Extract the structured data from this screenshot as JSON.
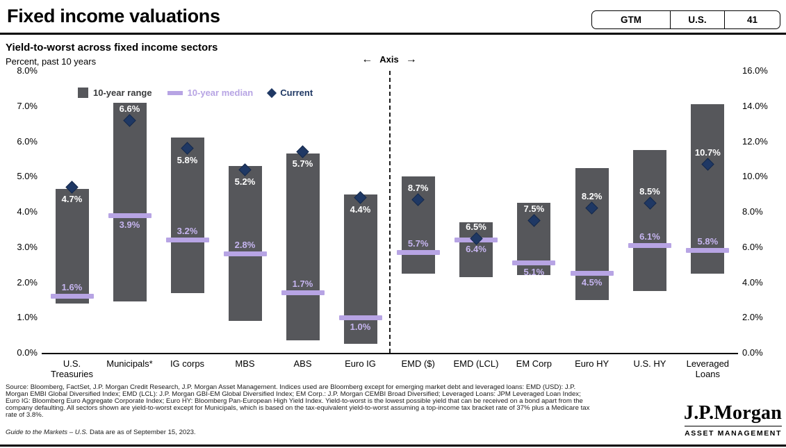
{
  "header": {
    "title": "Fixed income valuations",
    "badge": [
      "GTM",
      "U.S.",
      "41"
    ]
  },
  "chart_data": {
    "type": "bar",
    "subtype": "floating-range-with-median-and-current-markers",
    "title": "Yield-to-worst across fixed income sectors",
    "subtitle": "Percent, past 10 years",
    "axis_divider_label": "Axis",
    "legend": [
      {
        "marker": "square",
        "label": "10-year range"
      },
      {
        "marker": "line",
        "label": "10-year median"
      },
      {
        "marker": "diamond",
        "label": "Current"
      }
    ],
    "left_axis": {
      "min": 0,
      "max": 8,
      "ticks": [
        "8.0%",
        "7.0%",
        "6.0%",
        "5.0%",
        "4.0%",
        "3.0%",
        "2.0%",
        "1.0%",
        "0.0%"
      ]
    },
    "right_axis": {
      "min": 0,
      "max": 16,
      "ticks": [
        "16.0%",
        "14.0%",
        "12.0%",
        "10.0%",
        "8.0%",
        "6.0%",
        "4.0%",
        "2.0%",
        "0.0%"
      ]
    },
    "bars": [
      {
        "category": "U.S.\nTreasuries",
        "axis": "left",
        "range_low": 1.4,
        "range_high": 4.65,
        "median": 1.6,
        "current": 4.7,
        "median_label": "1.6%",
        "current_label": "4.7%",
        "median_label_side": "above",
        "current_label_side": "below"
      },
      {
        "category": "Municipals*",
        "axis": "left",
        "range_low": 1.45,
        "range_high": 7.1,
        "median": 3.9,
        "current": 6.6,
        "median_label": "3.9%",
        "current_label": "6.6%",
        "median_label_side": "below",
        "current_label_side": "above"
      },
      {
        "category": "IG corps",
        "axis": "left",
        "range_low": 1.7,
        "range_high": 6.1,
        "median": 3.2,
        "current": 5.8,
        "median_label": "3.2%",
        "current_label": "5.8%",
        "median_label_side": "above",
        "current_label_side": "below"
      },
      {
        "category": "MBS",
        "axis": "left",
        "range_low": 0.9,
        "range_high": 5.3,
        "median": 2.8,
        "current": 5.2,
        "median_label": "2.8%",
        "current_label": "5.2%",
        "median_label_side": "above",
        "current_label_side": "below"
      },
      {
        "category": "ABS",
        "axis": "left",
        "range_low": 0.35,
        "range_high": 5.65,
        "median": 1.7,
        "current": 5.7,
        "median_label": "1.7%",
        "current_label": "5.7%",
        "median_label_side": "above",
        "current_label_side": "below"
      },
      {
        "category": "Euro IG",
        "axis": "left",
        "range_low": 0.25,
        "range_high": 4.5,
        "median": 1.0,
        "current": 4.4,
        "median_label": "1.0%",
        "current_label": "4.4%",
        "median_label_side": "below",
        "current_label_side": "below"
      },
      {
        "category": "EMD ($)",
        "axis": "right",
        "range_low": 4.5,
        "range_high": 10.0,
        "median": 5.7,
        "current": 8.7,
        "median_label": "5.7%",
        "current_label": "8.7%",
        "median_label_side": "above",
        "current_label_side": "above"
      },
      {
        "category": "EMD (LCL)",
        "axis": "right",
        "range_low": 4.3,
        "range_high": 7.4,
        "median": 6.4,
        "current": 6.5,
        "median_label": "6.4%",
        "current_label": "6.5%",
        "median_label_side": "below",
        "current_label_side": "above"
      },
      {
        "category": "EM Corp",
        "axis": "right",
        "range_low": 4.4,
        "range_high": 8.5,
        "median": 5.1,
        "current": 7.5,
        "median_label": "5.1%",
        "current_label": "7.5%",
        "median_label_side": "below",
        "current_label_side": "above"
      },
      {
        "category": "Euro HY",
        "axis": "right",
        "range_low": 3.0,
        "range_high": 10.5,
        "median": 4.5,
        "current": 8.2,
        "median_label": "4.5%",
        "current_label": "8.2%",
        "median_label_side": "below",
        "current_label_side": "above"
      },
      {
        "category": "U.S. HY",
        "axis": "right",
        "range_low": 3.5,
        "range_high": 11.5,
        "median": 6.1,
        "current": 8.5,
        "median_label": "6.1%",
        "current_label": "8.5%",
        "median_label_side": "above",
        "current_label_side": "above"
      },
      {
        "category": "Leveraged\nLoans",
        "axis": "right",
        "range_low": 4.5,
        "range_high": 14.1,
        "median": 5.8,
        "current": 10.7,
        "median_label": "5.8%",
        "current_label": "10.7%",
        "median_label_side": "above",
        "current_label_side": "above"
      }
    ]
  },
  "colors": {
    "range_bar": "#56575B",
    "median": "#B7A4E4",
    "median_text": "#C6B5F0",
    "median_legend_text": "#B7A4E4",
    "current": "#1F3864",
    "current_border": "#15294C",
    "current_text": "#FFFFFF",
    "legend_range_text": "#3A3B3D",
    "divider": "#1A1A1A"
  },
  "footer": {
    "source": "Source: Bloomberg, FactSet, J.P. Morgan Credit Research, J.P. Morgan Asset Management. Indices used are Bloomberg except for emerging market debt and leveraged loans: EMD (USD): J.P. Morgan EMBI Global Diversified Index; EMD (LCL): J.P. Morgan GBI-EM Global Diversified Index; EM Corp.: J.P. Morgan CEMBI Broad Diversified; Leveraged Loans: JPM Leveraged Loan Index; Euro IG: Bloomberg Euro Aggregate Corporate Index; Euro HY: Bloomberg Pan-European High Yield Index. Yield-to-worst is the lowest possible yield that can be received on a bond apart from the company defaulting. All sectors shown are yield-to-worst except for Municipals, which is based on the tax-equivalent yield-to-worst assuming a top-income tax bracket rate of 37% plus a Medicare tax rate of 3.8%.",
    "gtm_italic": "Guide to the Markets – U.S.",
    "gtm_rest": " Data are as of September 15, 2023.",
    "logo_wordmark": "J.P.Morgan",
    "logo_subtext": "ASSET MANAGEMENT"
  }
}
